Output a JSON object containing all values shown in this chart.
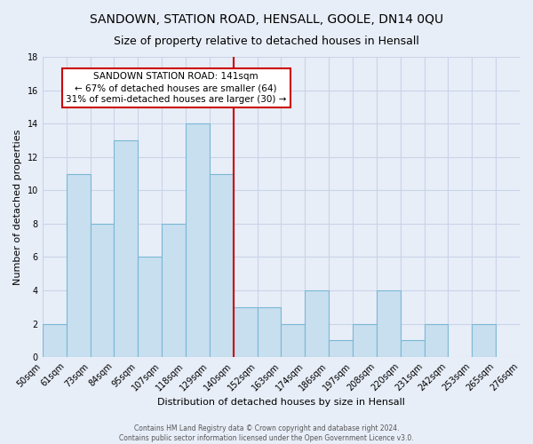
{
  "title": "SANDOWN, STATION ROAD, HENSALL, GOOLE, DN14 0QU",
  "subtitle": "Size of property relative to detached houses in Hensall",
  "xlabel": "Distribution of detached houses by size in Hensall",
  "ylabel": "Number of detached properties",
  "footer1": "Contains HM Land Registry data © Crown copyright and database right 2024.",
  "footer2": "Contains public sector information licensed under the Open Government Licence v3.0.",
  "bar_labels": [
    "50sqm",
    "61sqm",
    "73sqm",
    "84sqm",
    "95sqm",
    "107sqm",
    "118sqm",
    "129sqm",
    "140sqm",
    "152sqm",
    "163sqm",
    "174sqm",
    "186sqm",
    "197sqm",
    "208sqm",
    "220sqm",
    "231sqm",
    "242sqm",
    "253sqm",
    "265sqm",
    "276sqm"
  ],
  "bar_heights": [
    2,
    11,
    8,
    13,
    6,
    8,
    14,
    11,
    3,
    3,
    2,
    4,
    1,
    2,
    4,
    1,
    2,
    0,
    2,
    0
  ],
  "bar_color": "#c8dff0",
  "bar_edge_color": "#7ab8d4",
  "vline_label": "140sqm",
  "vline_color": "#cc0000",
  "annotation_title": "SANDOWN STATION ROAD: 141sqm",
  "annotation_line1": "← 67% of detached houses are smaller (64)",
  "annotation_line2": "31% of semi-detached houses are larger (30) →",
  "annotation_box_facecolor": "#ffffff",
  "annotation_box_edgecolor": "#cc0000",
  "ylim": [
    0,
    18
  ],
  "yticks": [
    0,
    2,
    4,
    6,
    8,
    10,
    12,
    14,
    16,
    18
  ],
  "background_color": "#e8eef8",
  "grid_color": "#c8d4e8",
  "title_fontsize": 10,
  "subtitle_fontsize": 9,
  "axis_label_fontsize": 8,
  "tick_fontsize": 7,
  "annotation_fontsize": 7.5,
  "footer_fontsize": 5.5
}
